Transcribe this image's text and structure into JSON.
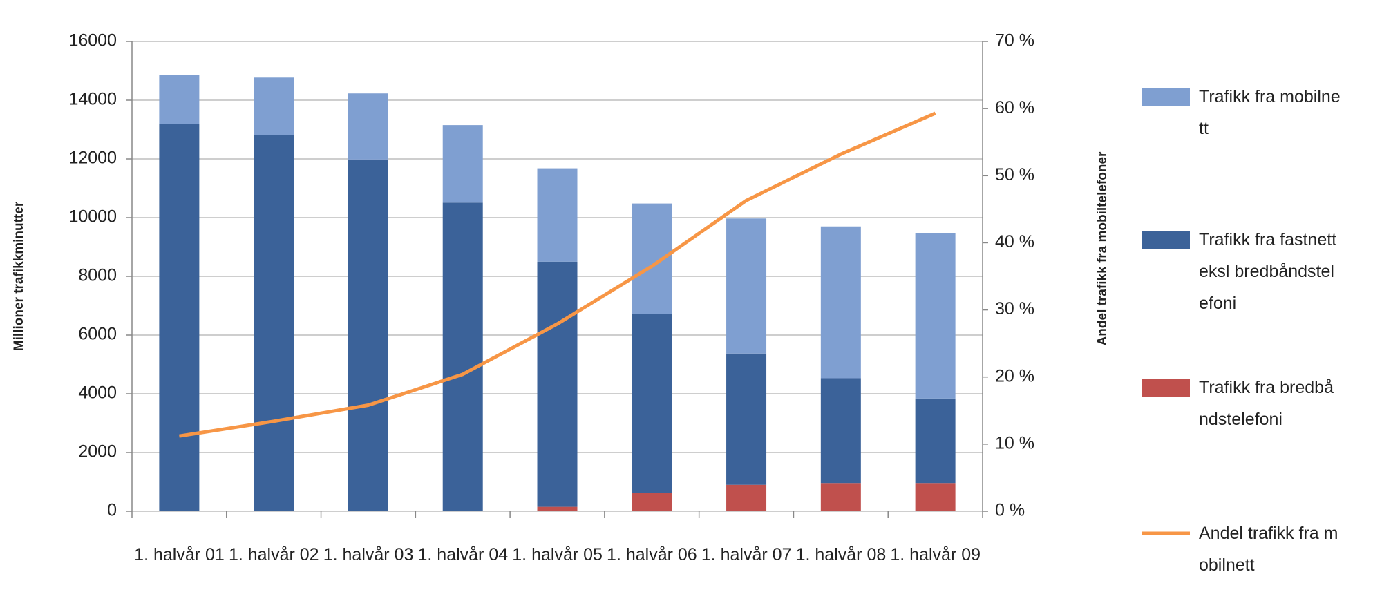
{
  "chart_data": {
    "type": "bar",
    "stacked": true,
    "grid": true,
    "ylabel": "Millioner trafikkminutter",
    "y2label": "Andel trafikk fra mobiltelefoner",
    "categories": [
      "1. halvår 01",
      "1. halvår 02",
      "1. halvår 03",
      "1. halvår 04",
      "1. halvår 05",
      "1. halvår 06",
      "1. halvår 07",
      "1. halvår 08",
      "1. halvår 09"
    ],
    "ylim": [
      0,
      16000
    ],
    "yticks": [
      0,
      2000,
      4000,
      6000,
      8000,
      10000,
      12000,
      14000,
      16000
    ],
    "y2lim": [
      0,
      70
    ],
    "y2ticks": [
      {
        "value": 0,
        "label": "0 %"
      },
      {
        "value": 10,
        "label": "10 %"
      },
      {
        "value": 20,
        "label": "20 %"
      },
      {
        "value": 30,
        "label": "30 %"
      },
      {
        "value": 40,
        "label": "40 %"
      },
      {
        "value": 50,
        "label": "50 %"
      },
      {
        "value": 60,
        "label": "60 %"
      },
      {
        "value": 70,
        "label": "70 %"
      }
    ],
    "series": [
      {
        "name": "Trafikk fra mobilnett",
        "color": "#7f9fd1",
        "type": "bar",
        "values": [
          1680,
          1950,
          2250,
          2640,
          3180,
          3760,
          4600,
          5170,
          5620
        ]
      },
      {
        "name": "Trafikk fra fastnett eksl bredbåndstelefoni",
        "color": "#3b6299",
        "type": "bar",
        "values": [
          13180,
          12820,
          11980,
          10510,
          8350,
          6090,
          4470,
          3570,
          2880
        ]
      },
      {
        "name": "Trafikk fra bredbåndstelefoni",
        "color": "#c0504d",
        "type": "bar",
        "values": [
          0,
          0,
          0,
          0,
          150,
          630,
          900,
          960,
          960
        ]
      },
      {
        "name": "Andel trafikk fra mobilnett",
        "color": "#f79646",
        "type": "line",
        "axis": "y2",
        "values": [
          11.2,
          13.4,
          15.8,
          20.4,
          27.9,
          36.5,
          46.3,
          53.2,
          59.3
        ]
      }
    ]
  }
}
